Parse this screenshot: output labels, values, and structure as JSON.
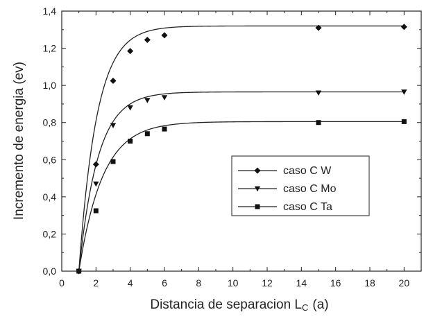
{
  "chart_data": {
    "type": "line",
    "title": "",
    "xlabel": "Distancia de separacion L",
    "xlabel_subscript": "C",
    "xlabel_unit": "(a)",
    "ylabel": "Incremento de energia (ev)",
    "xlim": [
      0,
      21
    ],
    "ylim": [
      0,
      1.4
    ],
    "xticks": [
      0,
      2,
      4,
      6,
      8,
      10,
      12,
      14,
      16,
      18,
      20
    ],
    "xtick_labels": [
      "0",
      "2",
      "4",
      "6",
      "8",
      "10",
      "12",
      "14",
      "16",
      "18",
      "20"
    ],
    "yticks": [
      0,
      0.2,
      0.4,
      0.6,
      0.8,
      1.0,
      1.2,
      1.4
    ],
    "ytick_labels": [
      "0,0",
      "0,2",
      "0,4",
      "0,6",
      "0,8",
      "1,0",
      "1,2",
      "1,4"
    ],
    "grid": false,
    "legend_position": "center-right",
    "series": [
      {
        "name": "caso C W",
        "marker": "diamond",
        "x": [
          1,
          2,
          3,
          4,
          5,
          6,
          15,
          20
        ],
        "y": [
          0.0,
          0.575,
          1.025,
          1.185,
          1.245,
          1.27,
          1.31,
          1.315
        ],
        "fit": {
          "A": 1.32,
          "k": 0.95
        }
      },
      {
        "name": "caso C Mo",
        "marker": "triangle-down",
        "x": [
          1,
          2,
          3,
          4,
          5,
          6,
          15,
          20
        ],
        "y": [
          0.0,
          0.47,
          0.785,
          0.88,
          0.92,
          0.935,
          0.96,
          0.965
        ],
        "fit": {
          "A": 0.965,
          "k": 0.9
        }
      },
      {
        "name": "caso C Ta",
        "marker": "square",
        "x": [
          1,
          2,
          3,
          4,
          5,
          6,
          15,
          20
        ],
        "y": [
          0.0,
          0.325,
          0.59,
          0.7,
          0.74,
          0.765,
          0.8,
          0.805
        ],
        "fit": {
          "A": 0.805,
          "k": 0.72
        }
      }
    ]
  },
  "colors": {
    "line": "#222222",
    "marker": "#111111",
    "background": "#ffffff"
  }
}
